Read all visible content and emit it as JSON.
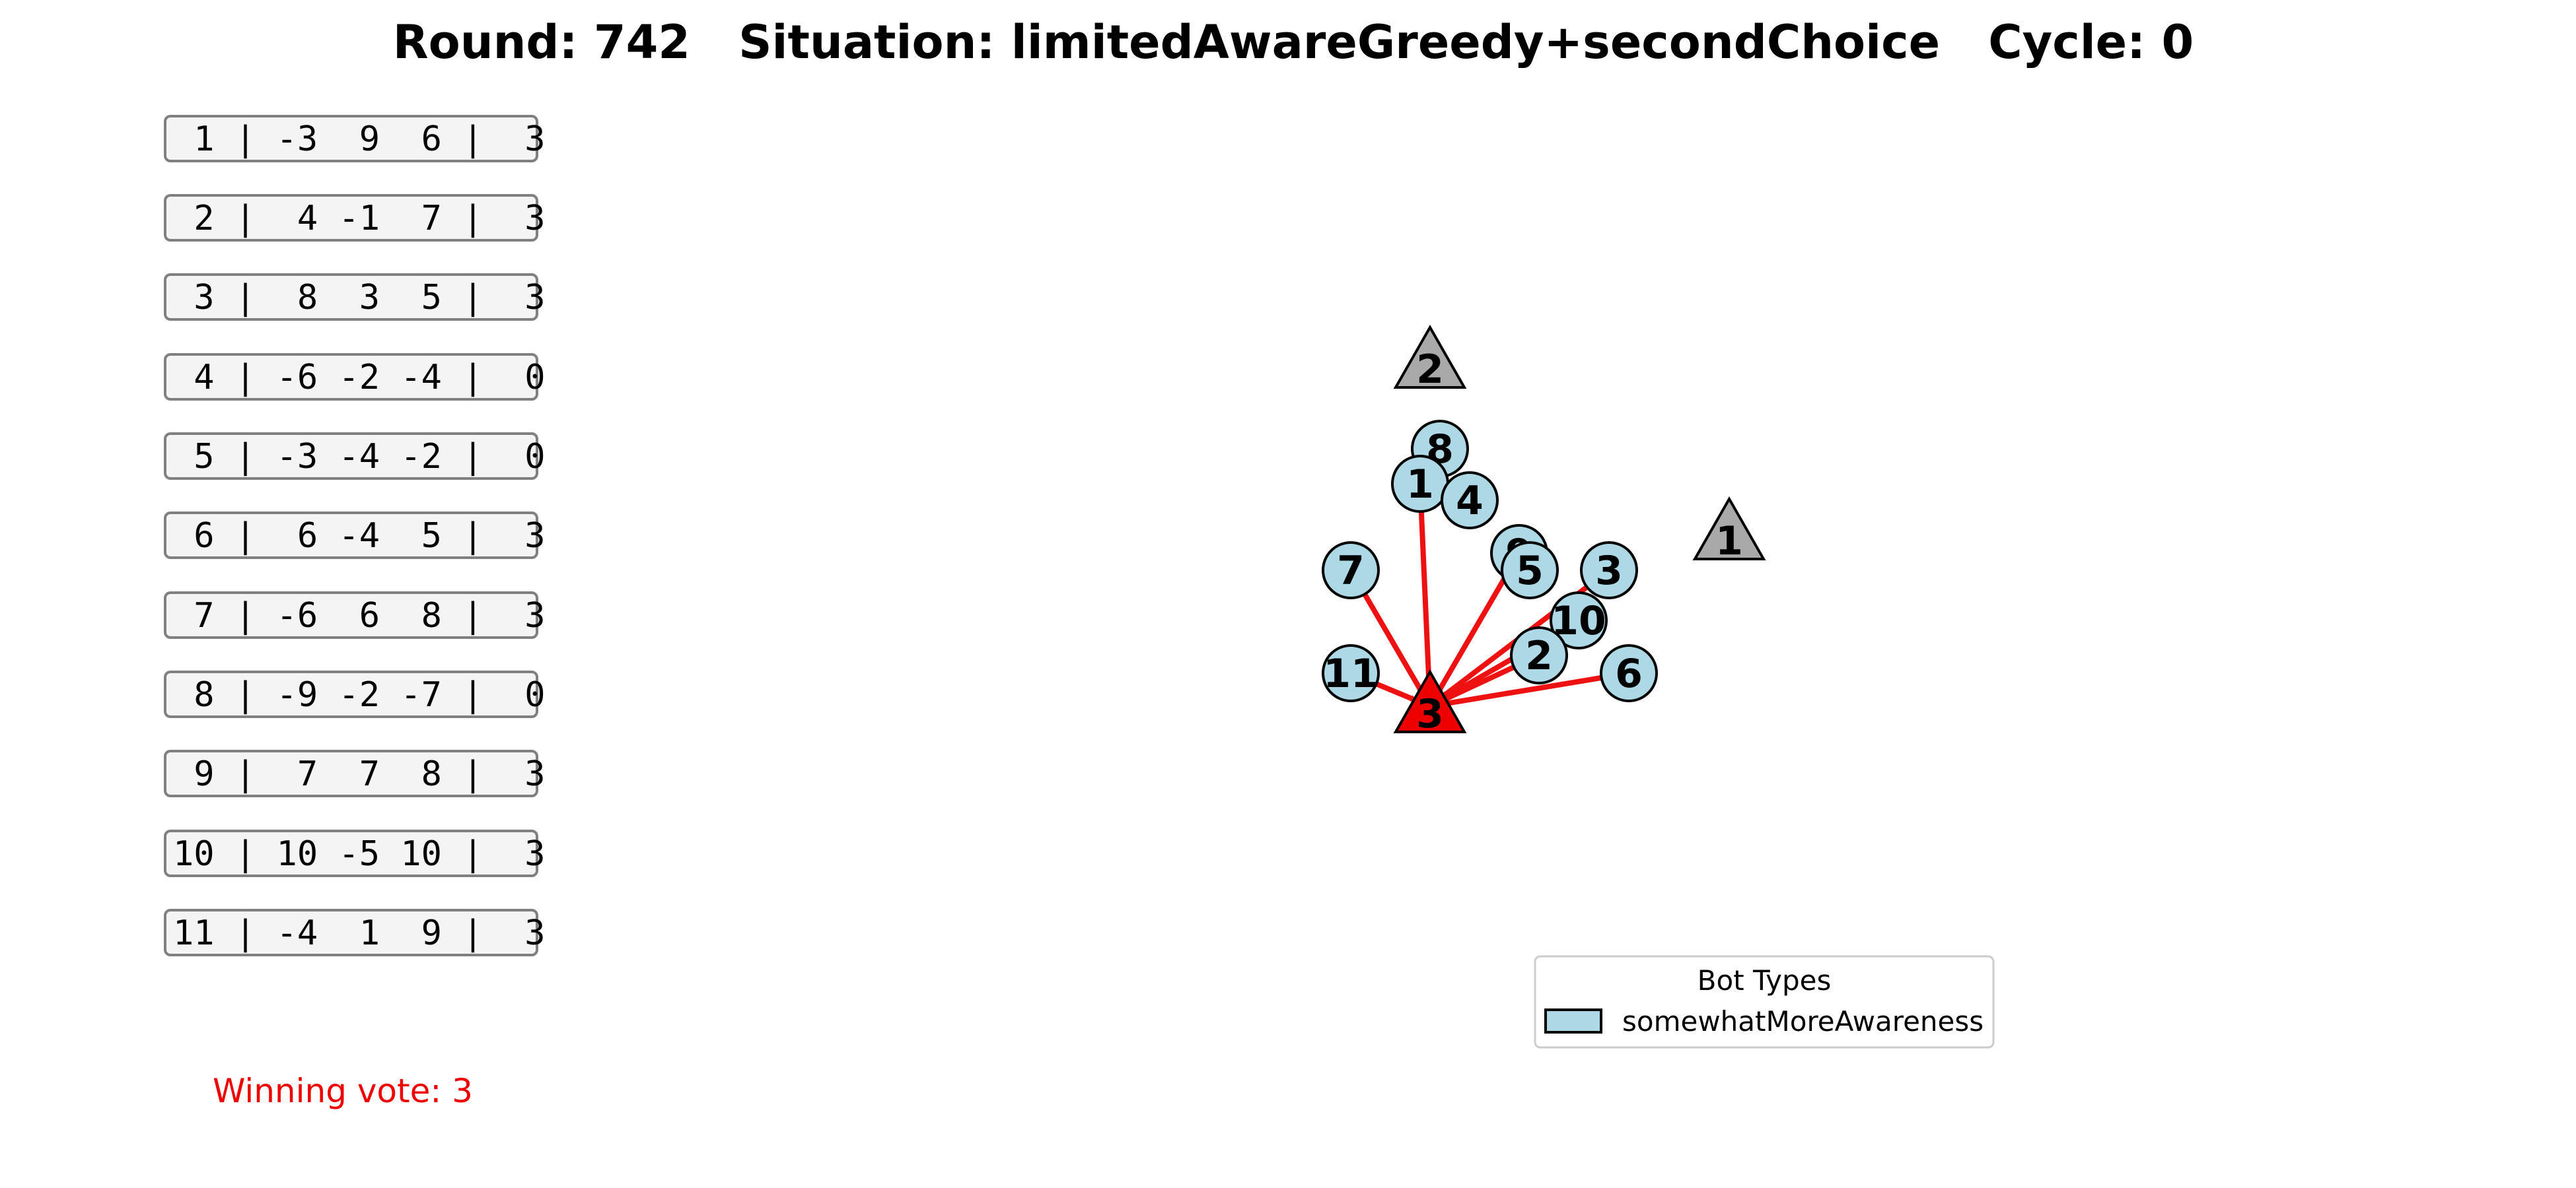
{
  "header": {
    "title": "Round: 742   Situation: limitedAwareGreedy+secondChoice   Cycle: 0"
  },
  "preference_table": {
    "rows": [
      " 1 | -3  9  6 |  3",
      " 2 |  4 -1  7 |  3",
      " 3 |  8  3  5 |  3",
      " 4 | -6 -2 -4 |  0",
      " 5 | -3 -4 -2 |  0",
      " 6 |  6 -4  5 |  3",
      " 7 | -6  6  8 |  3",
      " 8 | -9 -2 -7 |  0",
      " 9 |  7  7  8 |  3",
      "10 | 10 -5 10 |  3",
      "11 | -4  1  9 |  3"
    ]
  },
  "winning": {
    "text": "Winning vote: 3",
    "color": "#ee0000"
  },
  "legend": {
    "title": "Bot Types",
    "entries": [
      {
        "label": "somewhatMoreAwareness",
        "color": "#add8e6"
      }
    ]
  },
  "graph": {
    "edge_color": "#ee1111",
    "bot_color": "#add8e6",
    "candidate_color": "#a9a9a9",
    "winner_color": "#ee0000",
    "winner": "3",
    "candidates": [
      {
        "label": "2"
      },
      {
        "label": "1"
      },
      {
        "label": "3"
      }
    ],
    "bots": [
      {
        "label": "8",
        "vote": ""
      },
      {
        "label": "1",
        "vote": "3"
      },
      {
        "label": "4",
        "vote": ""
      },
      {
        "label": "7",
        "vote": "3"
      },
      {
        "label": "9",
        "vote": "3"
      },
      {
        "label": "5",
        "vote": ""
      },
      {
        "label": "3",
        "vote": "3"
      },
      {
        "label": "10",
        "vote": "3"
      },
      {
        "label": "2",
        "vote": "3"
      },
      {
        "label": "6",
        "vote": "3"
      },
      {
        "label": "11",
        "vote": "3"
      }
    ]
  }
}
